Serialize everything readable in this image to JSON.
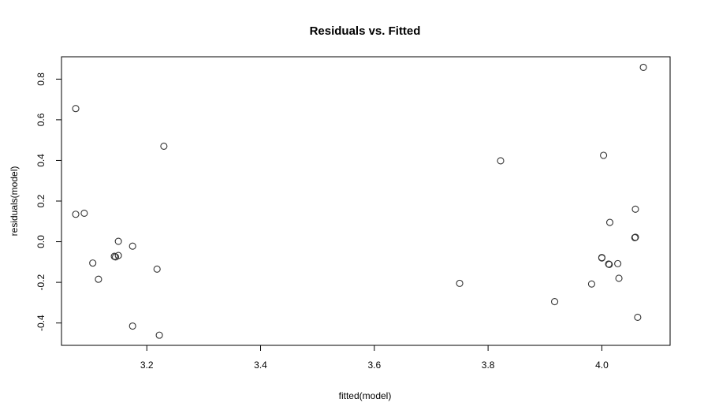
{
  "chart_data": {
    "type": "scatter",
    "title": "Residuals vs. Fitted",
    "xlabel": "fitted(model)",
    "ylabel": "residuals(model)",
    "xlim": [
      3.05,
      4.12
    ],
    "ylim": [
      -0.51,
      0.91
    ],
    "xticks": [
      3.2,
      3.4,
      3.6,
      3.8,
      4.0
    ],
    "yticks": [
      -0.4,
      -0.2,
      0.0,
      0.2,
      0.4,
      0.6,
      0.8
    ],
    "xtick_labels": [
      "3.2",
      "3.4",
      "3.6",
      "3.8",
      "4.0"
    ],
    "ytick_labels": [
      "-0.4",
      "-0.2",
      "0.0",
      "0.2",
      "0.4",
      "0.6",
      "0.8"
    ],
    "grid": false,
    "marker": "open-circle",
    "points": [
      {
        "x": 3.075,
        "y": 0.655
      },
      {
        "x": 3.075,
        "y": 0.135
      },
      {
        "x": 3.09,
        "y": 0.14
      },
      {
        "x": 3.105,
        "y": -0.105
      },
      {
        "x": 3.115,
        "y": -0.185
      },
      {
        "x": 3.143,
        "y": -0.072
      },
      {
        "x": 3.145,
        "y": -0.075
      },
      {
        "x": 3.15,
        "y": 0.002
      },
      {
        "x": 3.15,
        "y": -0.068
      },
      {
        "x": 3.175,
        "y": -0.022
      },
      {
        "x": 3.175,
        "y": -0.415
      },
      {
        "x": 3.218,
        "y": -0.135
      },
      {
        "x": 3.222,
        "y": -0.46
      },
      {
        "x": 3.23,
        "y": 0.47
      },
      {
        "x": 3.75,
        "y": -0.205
      },
      {
        "x": 3.822,
        "y": 0.398
      },
      {
        "x": 3.917,
        "y": -0.295
      },
      {
        "x": 3.982,
        "y": -0.208
      },
      {
        "x": 4.0,
        "y": -0.078
      },
      {
        "x": 4.0,
        "y": -0.08
      },
      {
        "x": 4.003,
        "y": 0.425
      },
      {
        "x": 4.012,
        "y": -0.11
      },
      {
        "x": 4.013,
        "y": -0.112
      },
      {
        "x": 4.014,
        "y": 0.095
      },
      {
        "x": 4.028,
        "y": -0.108
      },
      {
        "x": 4.03,
        "y": -0.18
      },
      {
        "x": 4.058,
        "y": 0.02
      },
      {
        "x": 4.059,
        "y": 0.022
      },
      {
        "x": 4.059,
        "y": 0.16
      },
      {
        "x": 4.063,
        "y": -0.372
      },
      {
        "x": 4.073,
        "y": 0.858
      }
    ]
  }
}
